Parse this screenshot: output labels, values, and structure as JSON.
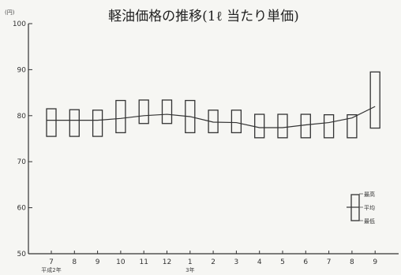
{
  "chart_data": {
    "type": "box",
    "title": "軽油価格の推移(1ℓ 当たり単価)",
    "y_unit": "(円)",
    "ylim": [
      50,
      100
    ],
    "y_ticks": [
      50,
      60,
      70,
      80,
      90,
      100
    ],
    "categories": [
      "7",
      "8",
      "9",
      "10",
      "11",
      "12",
      "1",
      "2",
      "3",
      "4",
      "5",
      "6",
      "7",
      "8",
      "9"
    ],
    "category_sublabels": [
      {
        "index": 0,
        "text": "平成2年"
      },
      {
        "index": 6,
        "text": "3年"
      }
    ],
    "series": [
      {
        "name": "最高",
        "values": [
          81.5,
          81.3,
          81.2,
          83.3,
          83.4,
          83.4,
          83.3,
          81.2,
          81.2,
          80.3,
          80.3,
          80.3,
          80.2,
          80.2,
          89.5
        ]
      },
      {
        "name": "平均",
        "values": [
          79.0,
          79.0,
          79.0,
          79.4,
          80.0,
          80.3,
          79.8,
          78.6,
          78.5,
          77.4,
          77.4,
          78.0,
          78.5,
          79.5,
          82.0
        ]
      },
      {
        "name": "最低",
        "values": [
          75.5,
          75.5,
          75.5,
          76.3,
          78.3,
          78.3,
          76.3,
          76.3,
          76.3,
          75.2,
          75.2,
          75.2,
          75.2,
          75.2,
          77.3
        ]
      }
    ],
    "legend": {
      "position": "right",
      "labels": [
        "最高",
        "平均",
        "最低"
      ]
    }
  }
}
